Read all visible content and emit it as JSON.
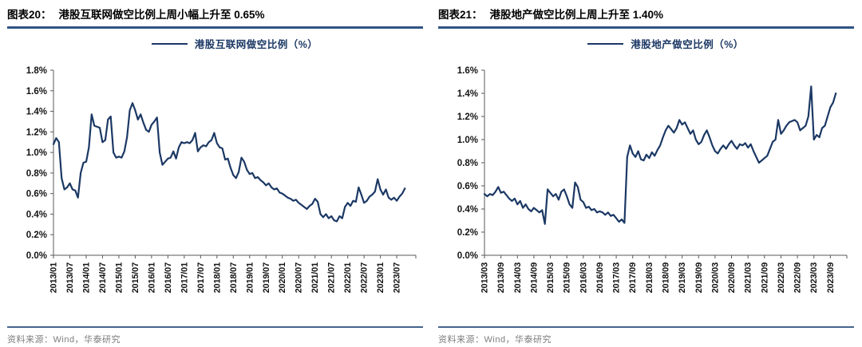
{
  "colors": {
    "line": "#1b3864",
    "legend_text": "#1b3864",
    "title_underline_top": "#92b0d2",
    "title_underline_bottom": "#2e5382",
    "source_rule": "#44658c",
    "source_text": "#7d7d7d",
    "axis": "#595959",
    "tick_label": "#141414"
  },
  "charts": [
    {
      "figure_label": "图表20：",
      "title": "港股互联网做空比例上周小幅上升至 0.65%",
      "legend": "港股互联网做空比例（%）",
      "source": "资料来源：Wind，华泰研究"
    },
    {
      "figure_label": "图表21：",
      "title": "港股地产做空比例上周上升至 1.40%",
      "legend": "港股地产做空比例（%）",
      "source": "资料来源：Wind，华泰研究"
    }
  ],
  "chart_data": [
    {
      "type": "line",
      "title": "港股互联网做空比例上周小幅上升至 0.65%",
      "series_name": "港股互联网做空比例（%）",
      "legend_position": "top-center",
      "grid": false,
      "unit": "%",
      "latest_value": 0.65,
      "x_start": "2013/01",
      "x_frequency": "monthly",
      "x_tick_labels": [
        "2013/01",
        "2013/07",
        "2014/01",
        "2014/07",
        "2015/01",
        "2015/07",
        "2016/01",
        "2016/07",
        "2017/01",
        "2017/07",
        "2018/01",
        "2018/07",
        "2019/01",
        "2019/07",
        "2020/01",
        "2020/07",
        "2021/01",
        "2021/07",
        "2022/01",
        "2022/07",
        "2023/01",
        "2023/07"
      ],
      "ylim": [
        0,
        1.8
      ],
      "ytick_step": 0.2,
      "ytick_labels": [
        "0.0%",
        "0.2%",
        "0.4%",
        "0.6%",
        "0.8%",
        "1.0%",
        "1.2%",
        "1.4%",
        "1.6%",
        "1.8%"
      ],
      "values": [
        1.08,
        1.14,
        1.1,
        0.75,
        0.64,
        0.66,
        0.7,
        0.64,
        0.63,
        0.56,
        0.8,
        0.9,
        0.91,
        1.05,
        1.37,
        1.26,
        1.25,
        1.24,
        1.1,
        1.12,
        1.32,
        1.35,
        1.0,
        0.95,
        0.96,
        0.95,
        1.01,
        1.15,
        1.41,
        1.48,
        1.41,
        1.32,
        1.37,
        1.29,
        1.22,
        1.2,
        1.27,
        1.3,
        1.34,
        1.0,
        0.88,
        0.91,
        0.94,
        0.95,
        1.01,
        0.94,
        1.05,
        1.1,
        1.09,
        1.1,
        1.09,
        1.12,
        1.19,
        1.01,
        1.05,
        1.07,
        1.06,
        1.1,
        1.12,
        1.19,
        1.09,
        1.05,
        1.04,
        0.93,
        0.94,
        0.85,
        0.78,
        0.75,
        0.81,
        0.95,
        0.91,
        0.83,
        0.79,
        0.8,
        0.75,
        0.76,
        0.73,
        0.71,
        0.68,
        0.7,
        0.66,
        0.64,
        0.65,
        0.61,
        0.6,
        0.58,
        0.56,
        0.55,
        0.53,
        0.54,
        0.51,
        0.49,
        0.47,
        0.45,
        0.48,
        0.5,
        0.55,
        0.52,
        0.4,
        0.37,
        0.4,
        0.36,
        0.38,
        0.34,
        0.33,
        0.38,
        0.36,
        0.47,
        0.51,
        0.48,
        0.53,
        0.52,
        0.66,
        0.59,
        0.51,
        0.53,
        0.57,
        0.59,
        0.62,
        0.74,
        0.64,
        0.59,
        0.64,
        0.56,
        0.54,
        0.56,
        0.53,
        0.57,
        0.6,
        0.65
      ]
    },
    {
      "type": "line",
      "title": "港股地产做空比例上周上升至 1.40%",
      "series_name": "港股地产做空比例（%）",
      "legend_position": "top-center",
      "grid": false,
      "unit": "%",
      "latest_value": 1.4,
      "x_start": "2013/03",
      "x_frequency": "monthly",
      "x_tick_labels": [
        "2013/03",
        "2013/09",
        "2014/03",
        "2014/09",
        "2015/03",
        "2015/09",
        "2016/03",
        "2016/09",
        "2017/03",
        "2017/09",
        "2018/03",
        "2018/09",
        "2019/03",
        "2019/09",
        "2020/03",
        "2020/09",
        "2021/03",
        "2021/09",
        "2022/03",
        "2022/09",
        "2023/03",
        "2023/09"
      ],
      "ylim": [
        0,
        1.6
      ],
      "ytick_step": 0.2,
      "ytick_labels": [
        "0.0%",
        "0.2%",
        "0.4%",
        "0.6%",
        "0.8%",
        "1.0%",
        "1.2%",
        "1.4%",
        "1.6%"
      ],
      "values": [
        0.53,
        0.51,
        0.53,
        0.52,
        0.55,
        0.59,
        0.54,
        0.55,
        0.52,
        0.49,
        0.47,
        0.49,
        0.44,
        0.47,
        0.41,
        0.44,
        0.4,
        0.38,
        0.41,
        0.39,
        0.37,
        0.39,
        0.27,
        0.57,
        0.54,
        0.51,
        0.53,
        0.48,
        0.55,
        0.57,
        0.51,
        0.44,
        0.41,
        0.63,
        0.59,
        0.48,
        0.46,
        0.41,
        0.42,
        0.39,
        0.4,
        0.37,
        0.38,
        0.37,
        0.35,
        0.37,
        0.34,
        0.35,
        0.32,
        0.29,
        0.31,
        0.28,
        0.85,
        0.95,
        0.88,
        0.85,
        0.9,
        0.83,
        0.82,
        0.87,
        0.84,
        0.89,
        0.86,
        0.91,
        0.95,
        1.02,
        1.08,
        1.12,
        1.09,
        1.06,
        1.1,
        1.17,
        1.13,
        1.15,
        1.1,
        1.05,
        1.08,
        1.0,
        0.96,
        0.98,
        1.04,
        1.08,
        1.02,
        0.95,
        0.9,
        0.88,
        0.92,
        0.95,
        0.92,
        0.96,
        0.99,
        0.95,
        0.92,
        0.96,
        0.95,
        0.97,
        0.93,
        0.96,
        0.9,
        0.85,
        0.8,
        0.82,
        0.84,
        0.86,
        0.92,
        0.98,
        1.0,
        1.17,
        1.05,
        1.08,
        1.12,
        1.15,
        1.16,
        1.17,
        1.15,
        1.08,
        1.1,
        1.12,
        1.2,
        1.46,
        1.0,
        1.04,
        1.02,
        1.1,
        1.12,
        1.2,
        1.28,
        1.32,
        1.4
      ]
    }
  ]
}
